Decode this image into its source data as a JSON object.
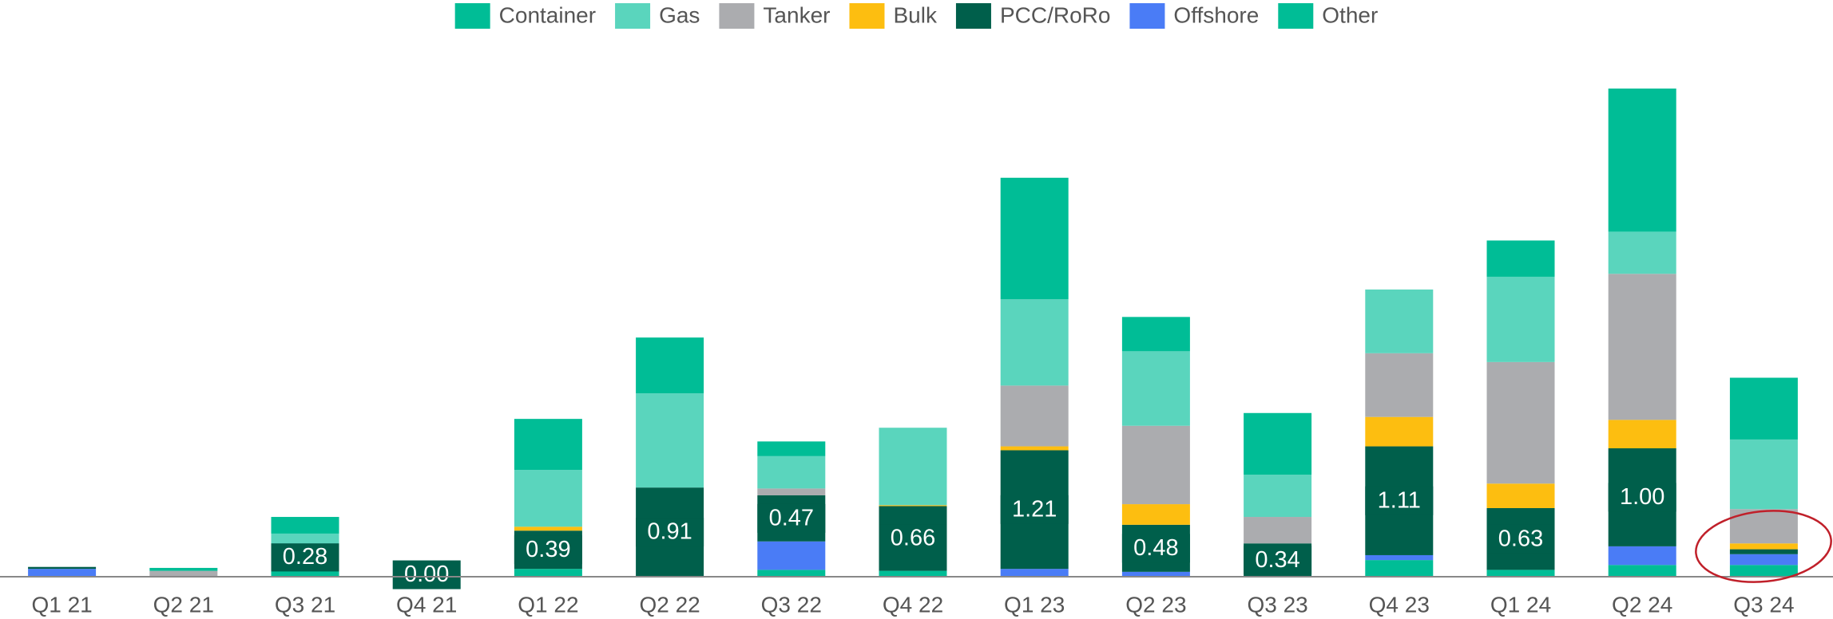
{
  "chart_data": {
    "type": "bar",
    "stacked": true,
    "categories": [
      "Q1 21",
      "Q2 21",
      "Q3 21",
      "Q4 21",
      "Q1 22",
      "Q2 22",
      "Q3 22",
      "Q4 22",
      "Q1 23",
      "Q2 23",
      "Q3 23",
      "Q4 23",
      "Q1 24",
      "Q2 24",
      "Q3 24"
    ],
    "series": [
      {
        "name": "Other",
        "color": "#00bd96",
        "values": [
          0,
          0,
          0.06,
          0.02,
          0.08,
          0,
          0.07,
          0.06,
          0,
          0,
          0,
          0.17,
          0.07,
          0.12,
          0.12
        ]
      },
      {
        "name": "Offshore",
        "color": "#4a7cf6",
        "values": [
          0.08,
          0,
          0,
          0,
          0,
          0,
          0.29,
          0,
          0.08,
          0.05,
          0,
          0.05,
          0,
          0.19,
          0.11
        ]
      },
      {
        "name": "PCC/RoRo",
        "color": "#005f4b",
        "values": [
          0.02,
          0,
          0.28,
          0,
          0.39,
          0.91,
          0.47,
          0.66,
          1.21,
          0.48,
          0.34,
          1.11,
          0.63,
          1.0,
          0.05
        ],
        "value_labels": [
          null,
          null,
          "0.28",
          "0.00",
          "0.39",
          "0.91",
          "0.47",
          "0.66",
          "1.21",
          "0.48",
          "0.34",
          "1.11",
          "0.63",
          "1.00",
          null
        ]
      },
      {
        "name": "Bulk",
        "color": "#fdbe10",
        "values": [
          0,
          0,
          0,
          0,
          0.04,
          0,
          0,
          0.01,
          0.04,
          0.21,
          0,
          0.3,
          0.25,
          0.29,
          0.06
        ]
      },
      {
        "name": "Tanker",
        "color": "#abacaf",
        "values": [
          0,
          0.06,
          0,
          0,
          0,
          0,
          0.07,
          0,
          0.62,
          0.8,
          0.27,
          0.65,
          1.24,
          1.49,
          0.35
        ]
      },
      {
        "name": "Gas",
        "color": "#5ad5bd",
        "values": [
          0,
          0,
          0.1,
          0,
          0.58,
          0.96,
          0.33,
          0.79,
          0.88,
          0.76,
          0.43,
          0.65,
          0.87,
          0.43,
          0.71
        ]
      },
      {
        "name": "Container",
        "color": "#00bd96",
        "values": [
          0,
          0.03,
          0.17,
          0,
          0.52,
          0.57,
          0.15,
          0,
          1.24,
          0.35,
          0.63,
          0,
          0.37,
          1.46,
          0.63
        ]
      }
    ],
    "legend_order": [
      "Container",
      "Gas",
      "Tanker",
      "Bulk",
      "PCC/RoRo",
      "Offshore",
      "Other"
    ],
    "legend": "top"
  }
}
